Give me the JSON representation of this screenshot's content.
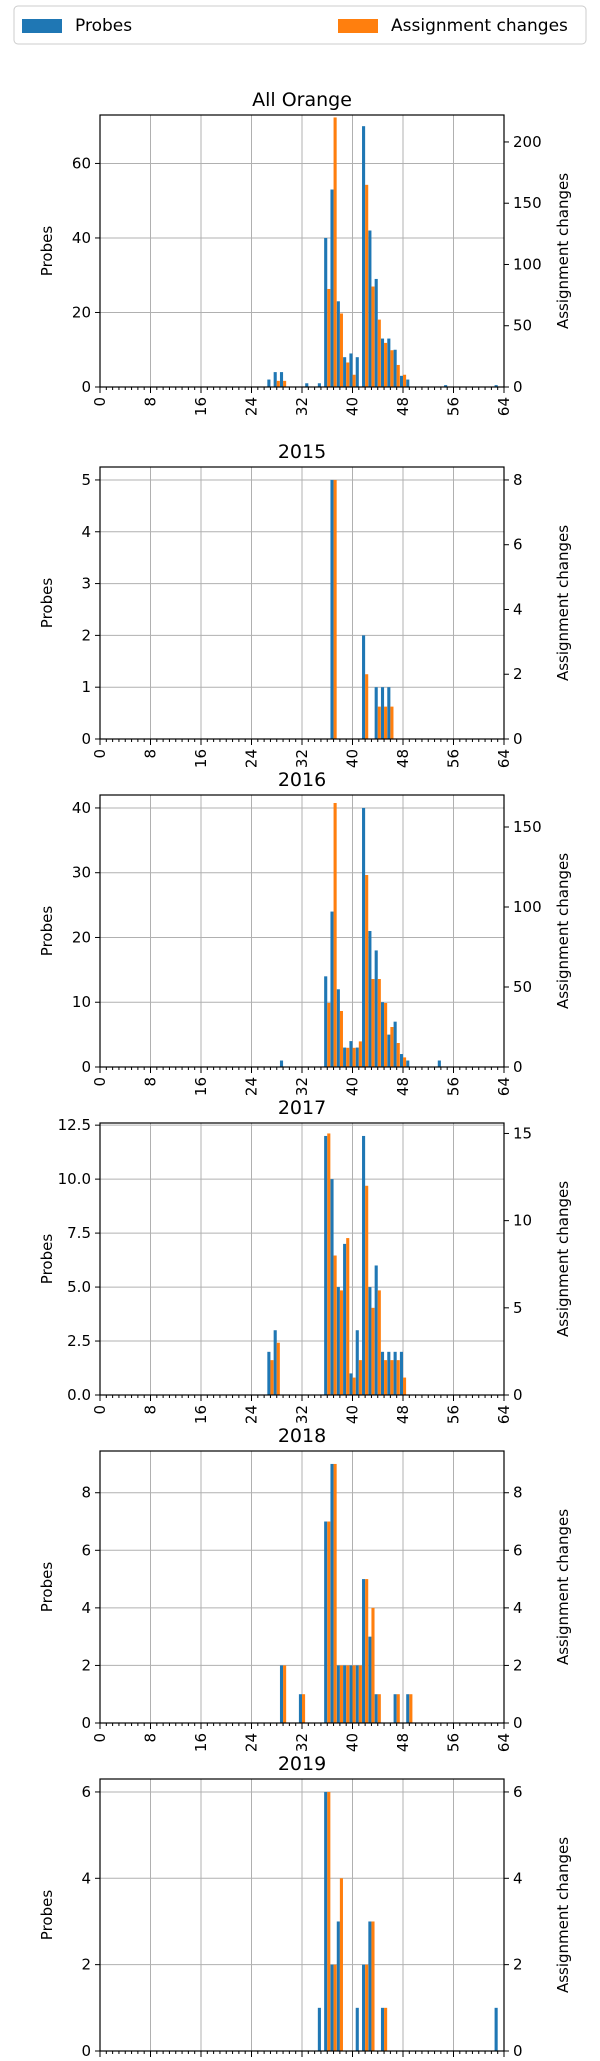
{
  "legend": {
    "items": [
      {
        "label": "Probes",
        "color": "#1f77b4"
      },
      {
        "label": "Assignment changes",
        "color": "#ff7f0e"
      }
    ]
  },
  "chart_data": [
    {
      "type": "bar",
      "title": "All Orange",
      "xlabel": "",
      "ylabel": "Probes",
      "y2label": "Assignment changes",
      "xlim": [
        0,
        64
      ],
      "xticks": [
        "0",
        "8",
        "16",
        "24",
        "32",
        "40",
        "48",
        "56",
        "64"
      ],
      "ylim": [
        0,
        73
      ],
      "yticks": [
        0,
        20,
        40,
        60
      ],
      "y2lim": [
        0,
        222
      ],
      "y2ticks": [
        0,
        50,
        100,
        150,
        200
      ],
      "grid": true,
      "series": [
        {
          "name": "Probes",
          "color": "#1f77b4",
          "axis": "left",
          "x": [
            27,
            28,
            29,
            33,
            35,
            36,
            37,
            38,
            39,
            40,
            41,
            42,
            43,
            44,
            45,
            46,
            47,
            48,
            49,
            55,
            63
          ],
          "values": [
            2,
            4,
            4,
            1,
            1,
            40,
            53,
            23,
            8,
            9,
            8,
            70,
            42,
            29,
            13,
            13,
            10,
            3,
            2,
            0.5,
            0.5
          ]
        },
        {
          "name": "Assignment changes",
          "color": "#ff7f0e",
          "axis": "right",
          "x": [
            28,
            29,
            36,
            37,
            38,
            39,
            40,
            42,
            43,
            44,
            45,
            46,
            47,
            48
          ],
          "values": [
            5,
            5,
            80,
            220,
            60,
            20,
            10,
            165,
            82,
            55,
            36,
            30,
            18,
            10
          ]
        }
      ]
    },
    {
      "type": "bar",
      "title": "2015",
      "xlabel": "",
      "ylabel": "Probes",
      "y2label": "Assignment changes",
      "xlim": [
        0,
        64
      ],
      "xticks": [
        "0",
        "8",
        "16",
        "24",
        "32",
        "40",
        "48",
        "56",
        "64"
      ],
      "ylim": [
        0,
        5.25
      ],
      "yticks": [
        0,
        1,
        2,
        3,
        4,
        5
      ],
      "y2lim": [
        0,
        8.4
      ],
      "y2ticks": [
        0,
        2,
        4,
        6,
        8
      ],
      "grid": true,
      "series": [
        {
          "name": "Probes",
          "color": "#1f77b4",
          "axis": "left",
          "x": [
            37,
            42,
            44,
            45,
            46
          ],
          "values": [
            5,
            2,
            1,
            1,
            1
          ]
        },
        {
          "name": "Assignment changes",
          "color": "#ff7f0e",
          "axis": "right",
          "x": [
            37,
            42,
            44,
            45,
            46
          ],
          "values": [
            8,
            2,
            1,
            1,
            1
          ]
        }
      ]
    },
    {
      "type": "bar",
      "title": "2016",
      "xlabel": "",
      "ylabel": "Probes",
      "y2label": "Assignment changes",
      "xlim": [
        0,
        64
      ],
      "xticks": [
        "0",
        "8",
        "16",
        "24",
        "32",
        "40",
        "48",
        "56",
        "64"
      ],
      "ylim": [
        0,
        42
      ],
      "yticks": [
        0,
        10,
        20,
        30,
        40
      ],
      "y2lim": [
        0,
        170
      ],
      "y2ticks": [
        0,
        50,
        100,
        150
      ],
      "grid": true,
      "series": [
        {
          "name": "Probes",
          "color": "#1f77b4",
          "axis": "left",
          "x": [
            29,
            36,
            37,
            38,
            39,
            40,
            41,
            42,
            43,
            44,
            45,
            46,
            47,
            48,
            49,
            54
          ],
          "values": [
            1,
            14,
            24,
            12,
            3,
            4,
            3,
            40,
            21,
            18,
            10,
            5,
            7,
            2,
            1,
            1
          ]
        },
        {
          "name": "Assignment changes",
          "color": "#ff7f0e",
          "axis": "right",
          "x": [
            36,
            37,
            38,
            39,
            40,
            41,
            42,
            43,
            44,
            45,
            46,
            47,
            48
          ],
          "values": [
            40,
            165,
            35,
            12,
            12,
            16,
            120,
            55,
            55,
            40,
            25,
            15,
            6
          ]
        }
      ]
    },
    {
      "type": "bar",
      "title": "2017",
      "xlabel": "",
      "ylabel": "Probes",
      "y2label": "Assignment changes",
      "xlim": [
        0,
        64
      ],
      "xticks": [
        "0",
        "8",
        "16",
        "24",
        "32",
        "40",
        "48",
        "56",
        "64"
      ],
      "ylim": [
        0,
        12.6
      ],
      "yticks": [
        "0.0",
        "2.5",
        "5.0",
        "7.5",
        "10.0",
        "12.5"
      ],
      "y2lim": [
        0,
        15.6
      ],
      "y2ticks": [
        0,
        5,
        10,
        15
      ],
      "grid": true,
      "series": [
        {
          "name": "Probes",
          "color": "#1f77b4",
          "axis": "left",
          "x": [
            27,
            28,
            36,
            37,
            38,
            39,
            40,
            41,
            42,
            43,
            44,
            45,
            46,
            47,
            48
          ],
          "values": [
            2,
            3,
            12,
            10,
            5,
            7,
            1,
            3,
            12,
            5,
            6,
            2,
            2,
            2,
            2
          ]
        },
        {
          "name": "Assignment changes",
          "color": "#ff7f0e",
          "axis": "right",
          "x": [
            27,
            28,
            36,
            37,
            38,
            39,
            40,
            41,
            42,
            43,
            44,
            45,
            46,
            47,
            48
          ],
          "values": [
            2,
            3,
            15,
            8,
            6,
            9,
            1,
            2,
            12,
            5,
            6,
            2,
            2,
            2,
            1
          ]
        }
      ]
    },
    {
      "type": "bar",
      "title": "2018",
      "xlabel": "",
      "ylabel": "Probes",
      "y2label": "Assignment changes",
      "xlim": [
        0,
        64
      ],
      "xticks": [
        "0",
        "8",
        "16",
        "24",
        "32",
        "40",
        "48",
        "56",
        "64"
      ],
      "ylim": [
        0,
        9.45
      ],
      "yticks": [
        0,
        2,
        4,
        6,
        8
      ],
      "y2lim": [
        0,
        9.45
      ],
      "y2ticks": [
        0,
        2,
        4,
        6,
        8
      ],
      "grid": true,
      "series": [
        {
          "name": "Probes",
          "color": "#1f77b4",
          "axis": "left",
          "x": [
            29,
            32,
            36,
            37,
            38,
            39,
            40,
            41,
            42,
            43,
            44,
            47,
            49
          ],
          "values": [
            2,
            1,
            7,
            9,
            2,
            2,
            2,
            2,
            5,
            3,
            1,
            1,
            1
          ]
        },
        {
          "name": "Assignment changes",
          "color": "#ff7f0e",
          "axis": "right",
          "x": [
            29,
            32,
            36,
            37,
            38,
            39,
            40,
            41,
            42,
            43,
            44,
            47,
            49
          ],
          "values": [
            2,
            1,
            7,
            9,
            2,
            2,
            2,
            2,
            5,
            4,
            1,
            1,
            1
          ]
        }
      ]
    },
    {
      "type": "bar",
      "title": "2019",
      "xlabel": "",
      "ylabel": "Probes",
      "y2label": "Assignment changes",
      "xlim": [
        0,
        64
      ],
      "xticks": [
        "0",
        "8",
        "16",
        "24",
        "32",
        "40",
        "48",
        "56",
        "64"
      ],
      "ylim": [
        0,
        6.3
      ],
      "yticks": [
        0,
        2,
        4,
        6
      ],
      "y2lim": [
        0,
        6.3
      ],
      "y2ticks": [
        0,
        2,
        4,
        6
      ],
      "grid": true,
      "series": [
        {
          "name": "Probes",
          "color": "#1f77b4",
          "axis": "left",
          "x": [
            35,
            36,
            37,
            38,
            41,
            42,
            43,
            45,
            63
          ],
          "values": [
            1,
            6,
            2,
            3,
            1,
            2,
            3,
            1,
            1
          ]
        },
        {
          "name": "Assignment changes",
          "color": "#ff7f0e",
          "axis": "right",
          "x": [
            36,
            37,
            38,
            42,
            43,
            45
          ],
          "values": [
            6,
            2,
            4,
            2,
            3,
            1
          ]
        }
      ]
    }
  ]
}
